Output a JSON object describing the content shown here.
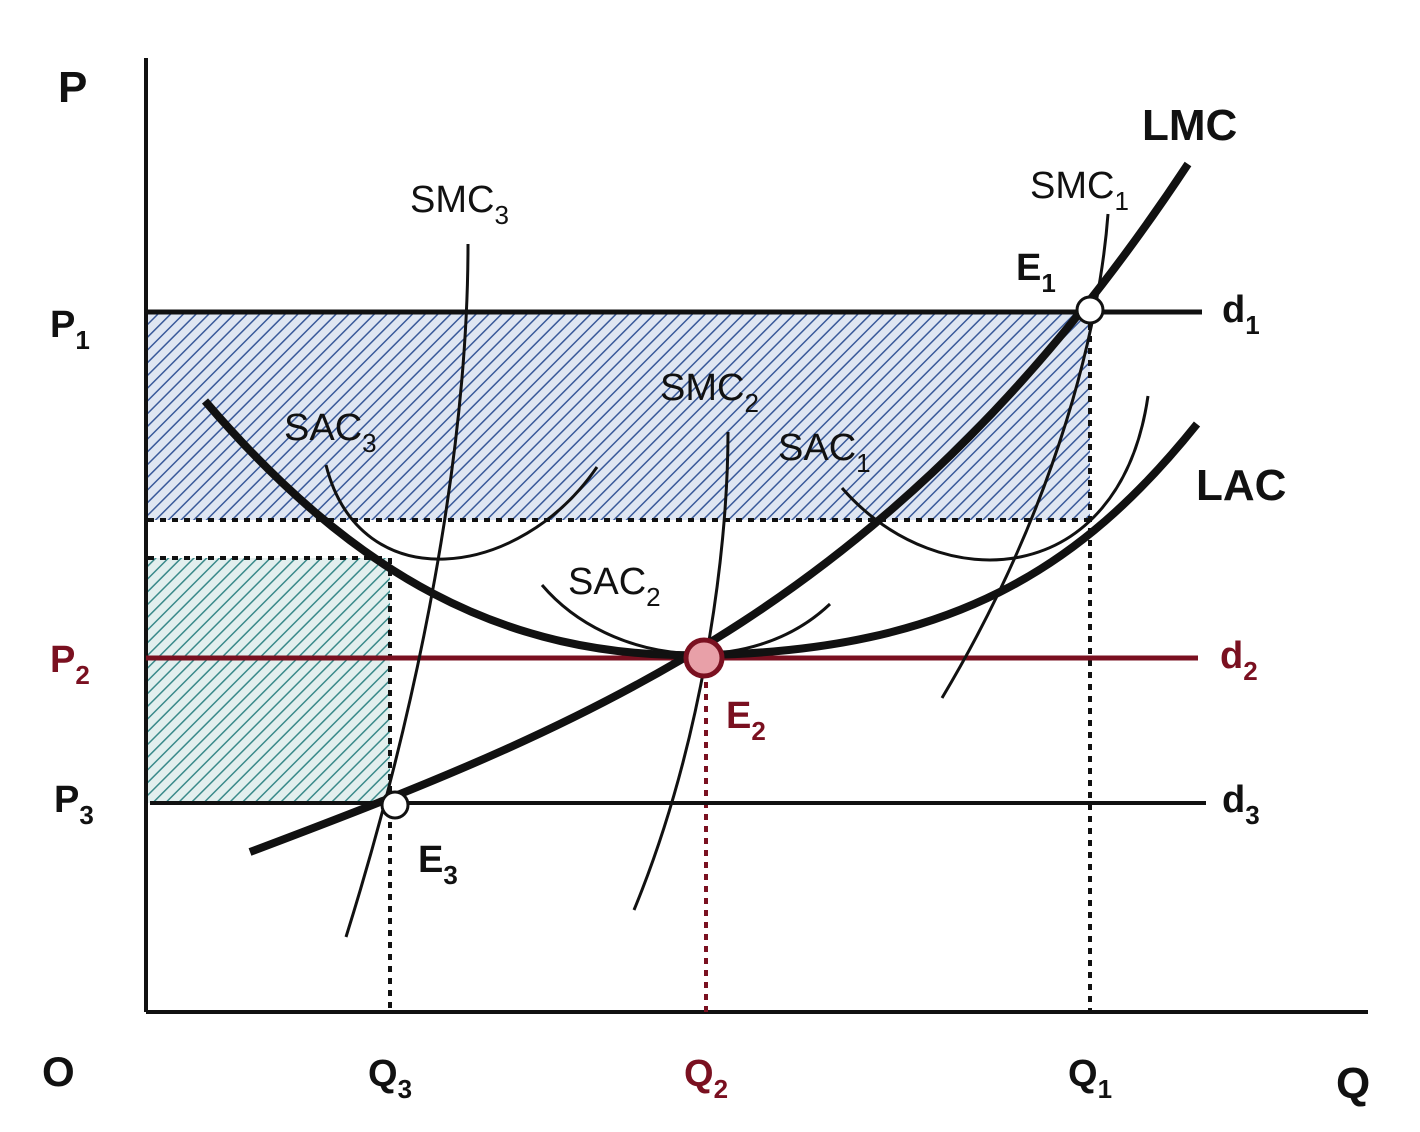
{
  "axes": {
    "y_label": "P",
    "x_label": "Q",
    "origin_label": "O"
  },
  "prices": [
    {
      "id": "p1",
      "base": "P",
      "sub": "1"
    },
    {
      "id": "p2",
      "base": "P",
      "sub": "2"
    },
    {
      "id": "p3",
      "base": "P",
      "sub": "3"
    }
  ],
  "quantities": [
    {
      "id": "q3",
      "base": "Q",
      "sub": "3"
    },
    {
      "id": "q2",
      "base": "Q",
      "sub": "2"
    },
    {
      "id": "q1",
      "base": "Q",
      "sub": "1"
    }
  ],
  "demand_lines": [
    {
      "id": "d1",
      "base": "d",
      "sub": "1"
    },
    {
      "id": "d2",
      "base": "d",
      "sub": "2"
    },
    {
      "id": "d3",
      "base": "d",
      "sub": "3"
    }
  ],
  "curves": {
    "lmc": "LMC",
    "lac": "LAC",
    "smc1": {
      "base": "SMC",
      "sub": "1"
    },
    "smc2": {
      "base": "SMC",
      "sub": "2"
    },
    "smc3": {
      "base": "SMC",
      "sub": "3"
    },
    "sac1": {
      "base": "SAC",
      "sub": "1"
    },
    "sac2": {
      "base": "SAC",
      "sub": "2"
    },
    "sac3": {
      "base": "SAC",
      "sub": "3"
    }
  },
  "equilibria": [
    {
      "id": "e1",
      "base": "E",
      "sub": "1"
    },
    {
      "id": "e2",
      "base": "E",
      "sub": "2"
    },
    {
      "id": "e3",
      "base": "E",
      "sub": "3"
    }
  ],
  "colors": {
    "axis": "#111111",
    "highlight": "#7a1020",
    "profit_hatch": "#3a5a9a",
    "loss_hatch": "#3a8a8a",
    "e2_fill": "#e8a0a8"
  }
}
